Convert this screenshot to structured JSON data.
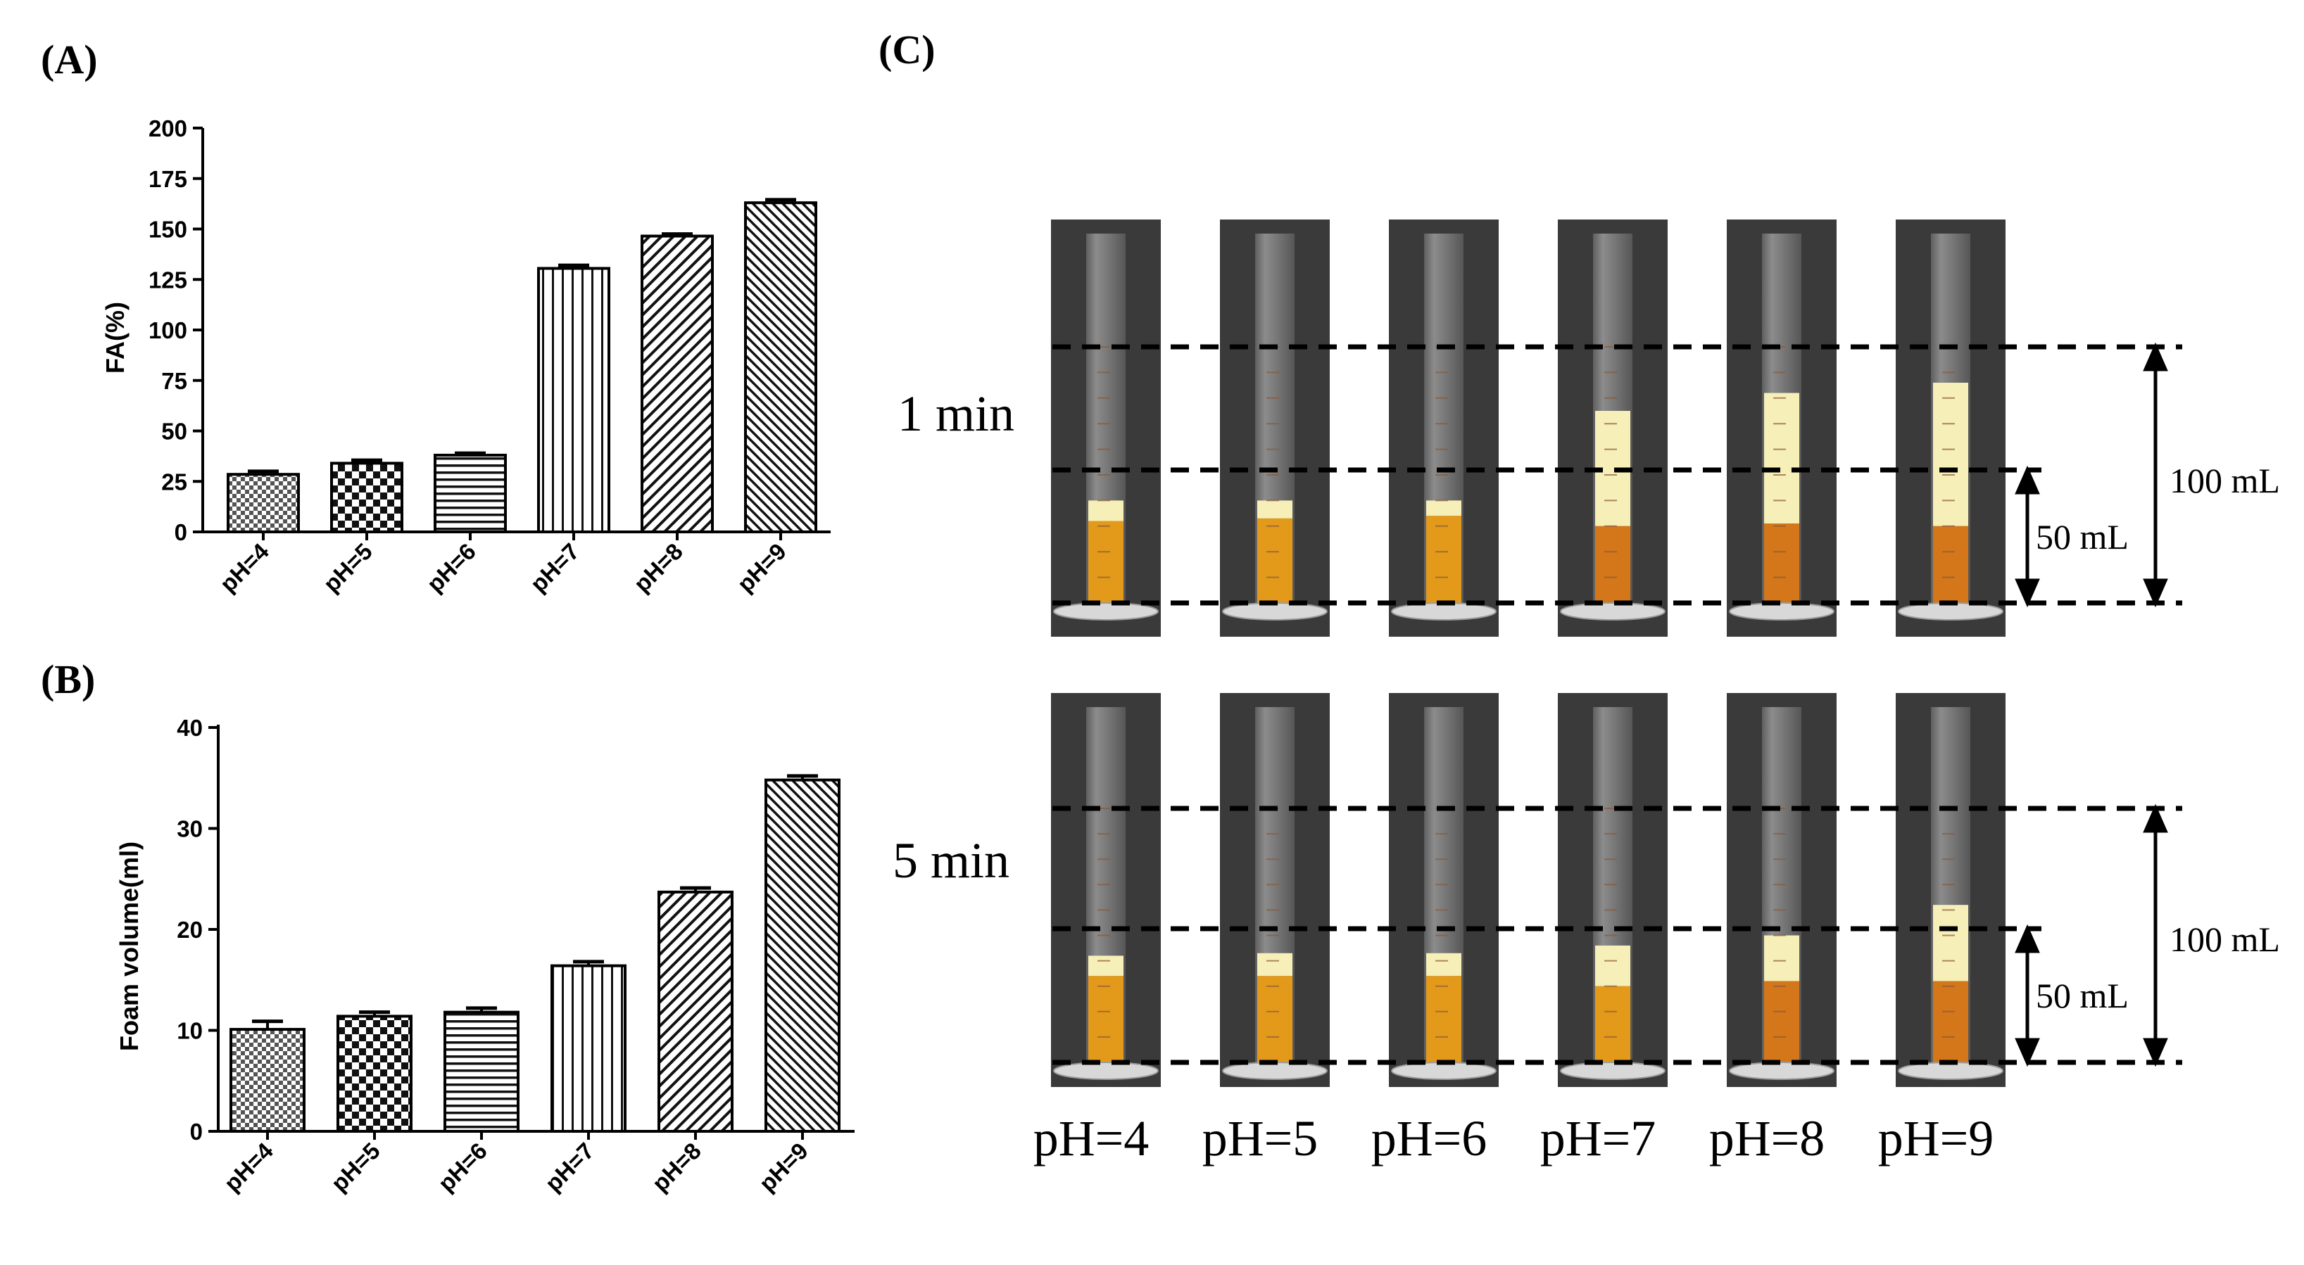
{
  "panel_labels": {
    "a": "(A)",
    "b": "(B)",
    "c": "(C)"
  },
  "chart_data": [
    {
      "id": "A",
      "type": "bar",
      "title": "",
      "xlabel": "",
      "ylabel": "FA(%)",
      "ylim": [
        0,
        200
      ],
      "yticks": [
        0,
        25,
        50,
        75,
        100,
        125,
        150,
        175,
        200
      ],
      "categories": [
        "pH=4",
        "pH=5",
        "pH=6",
        "pH=7",
        "pH=8",
        "pH=9"
      ],
      "values": [
        28.5,
        34,
        38,
        130.5,
        146.5,
        163
      ],
      "errors": [
        1.5,
        1.5,
        1.0,
        1.5,
        1.0,
        1.5
      ],
      "grid": false,
      "patterns": [
        "checker-fine",
        "checker-coarse",
        "horizontal",
        "vertical",
        "diagonal-right",
        "diagonal-right-dense"
      ]
    },
    {
      "id": "B",
      "type": "bar",
      "title": "",
      "xlabel": "",
      "ylabel": "Foam volume(ml)",
      "ylim": [
        0,
        40
      ],
      "yticks": [
        0,
        10,
        20,
        30,
        40
      ],
      "categories": [
        "pH=4",
        "pH=5",
        "pH=6",
        "pH=7",
        "pH=8",
        "pH=9"
      ],
      "values": [
        10.1,
        11.4,
        11.8,
        16.4,
        23.7,
        34.8
      ],
      "errors": [
        0.8,
        0.4,
        0.4,
        0.4,
        0.4,
        0.4
      ],
      "grid": false,
      "patterns": [
        "checker-fine",
        "checker-coarse",
        "horizontal",
        "vertical",
        "diagonal-right",
        "diagonal-right-dense"
      ]
    }
  ],
  "photo_panel": {
    "row_labels": [
      "1 min",
      "5 min"
    ],
    "column_labels": [
      "pH=4",
      "pH=5",
      "pH=6",
      "pH=7",
      "pH=8",
      "pH=9"
    ],
    "volume_labels": {
      "large": "100 mL",
      "small": "50 mL"
    },
    "colors": {
      "background": "#3a3a3a",
      "liquid": "#e39a1a",
      "liquid_deep": "#d3771a",
      "foam": "#f6efb8",
      "glass": "#9c9c9c"
    },
    "row1_foam_top_fraction": [
      0.4,
      0.4,
      0.4,
      0.75,
      0.82,
      0.86
    ],
    "row1_liquid_top_fraction": [
      0.32,
      0.33,
      0.34,
      0.3,
      0.31,
      0.3
    ],
    "row2_foam_top_fraction": [
      0.42,
      0.43,
      0.43,
      0.46,
      0.5,
      0.62
    ],
    "row2_liquid_top_fraction": [
      0.34,
      0.34,
      0.34,
      0.3,
      0.32,
      0.32
    ]
  }
}
